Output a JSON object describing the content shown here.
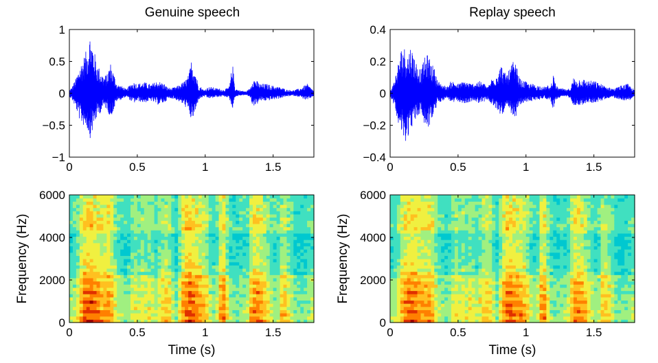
{
  "chart_data": [
    {
      "id": "genuine-waveform",
      "type": "line",
      "title": "Genuine speech",
      "xlabel": "",
      "ylabel": "",
      "xlim": [
        0,
        1.8
      ],
      "ylim": [
        -1,
        1
      ],
      "xticks": [
        0,
        0.5,
        1,
        1.5
      ],
      "xtick_labels": [
        "0",
        "0.5",
        "1",
        "1.5"
      ],
      "yticks": [
        -1,
        -0.5,
        0,
        0.5,
        1
      ],
      "ytick_labels": [
        "−1",
        "−0.5",
        "0",
        "0.5",
        "1"
      ],
      "grid": false,
      "series_color": "#0000ff",
      "envelope": {
        "x": [
          0,
          0.02,
          0.05,
          0.08,
          0.1,
          0.13,
          0.15,
          0.17,
          0.2,
          0.23,
          0.25,
          0.28,
          0.3,
          0.33,
          0.35,
          0.38,
          0.4,
          0.42,
          0.45,
          0.48,
          0.5,
          0.55,
          0.6,
          0.65,
          0.7,
          0.72,
          0.75,
          0.78,
          0.8,
          0.82,
          0.85,
          0.88,
          0.9,
          0.93,
          0.95,
          0.97,
          0.99,
          1.02,
          1.05,
          1.08,
          1.1,
          1.13,
          1.16,
          1.18,
          1.2,
          1.22,
          1.25,
          1.28,
          1.3,
          1.33,
          1.35,
          1.38,
          1.4,
          1.45,
          1.5,
          1.55,
          1.6,
          1.65,
          1.7,
          1.75,
          1.8
        ],
        "upper": [
          0.05,
          0.1,
          0.25,
          0.45,
          0.55,
          0.7,
          0.95,
          0.8,
          0.5,
          0.35,
          0.28,
          0.3,
          0.5,
          0.3,
          0.15,
          0.12,
          0.1,
          0.06,
          0.15,
          0.18,
          0.15,
          0.18,
          0.14,
          0.2,
          0.15,
          0.1,
          0.08,
          0.1,
          0.12,
          0.15,
          0.2,
          0.3,
          0.55,
          0.35,
          0.12,
          0.1,
          0.05,
          0.1,
          0.1,
          0.08,
          0.08,
          0.06,
          0.08,
          0.12,
          0.5,
          0.08,
          0.05,
          0.04,
          0.03,
          0.08,
          0.25,
          0.2,
          0.15,
          0.15,
          0.12,
          0.1,
          0.06,
          0.05,
          0.08,
          0.15,
          0.04
        ],
        "lower": [
          -0.05,
          -0.1,
          -0.25,
          -0.45,
          -0.5,
          -0.55,
          -0.72,
          -0.6,
          -0.4,
          -0.3,
          -0.22,
          -0.25,
          -0.4,
          -0.25,
          -0.12,
          -0.1,
          -0.08,
          -0.05,
          -0.12,
          -0.15,
          -0.12,
          -0.15,
          -0.12,
          -0.18,
          -0.15,
          -0.1,
          -0.08,
          -0.1,
          -0.12,
          -0.15,
          -0.2,
          -0.3,
          -0.45,
          -0.3,
          -0.1,
          -0.08,
          -0.05,
          -0.08,
          -0.08,
          -0.06,
          -0.06,
          -0.05,
          -0.06,
          -0.1,
          -0.25,
          -0.06,
          -0.04,
          -0.03,
          -0.03,
          -0.06,
          -0.2,
          -0.18,
          -0.12,
          -0.12,
          -0.1,
          -0.08,
          -0.05,
          -0.04,
          -0.06,
          -0.12,
          -0.04
        ]
      }
    },
    {
      "id": "replay-waveform",
      "type": "line",
      "title": "Replay speech",
      "xlabel": "",
      "ylabel": "",
      "xlim": [
        0,
        1.8
      ],
      "ylim": [
        -0.4,
        0.4
      ],
      "xticks": [
        0,
        0.5,
        1,
        1.5
      ],
      "xtick_labels": [
        "0",
        "0.5",
        "1",
        "1.5"
      ],
      "yticks": [
        -0.4,
        -0.2,
        0,
        0.2,
        0.4
      ],
      "ytick_labels": [
        "−0.4",
        "−0.2",
        "0",
        "0.2",
        "0.4"
      ],
      "grid": false,
      "series_color": "#0000ff",
      "envelope": {
        "x": [
          0,
          0.02,
          0.05,
          0.08,
          0.1,
          0.13,
          0.15,
          0.17,
          0.2,
          0.23,
          0.25,
          0.28,
          0.3,
          0.33,
          0.35,
          0.38,
          0.4,
          0.42,
          0.45,
          0.48,
          0.5,
          0.55,
          0.6,
          0.65,
          0.7,
          0.72,
          0.75,
          0.78,
          0.8,
          0.82,
          0.85,
          0.88,
          0.9,
          0.93,
          0.95,
          0.97,
          0.99,
          1.02,
          1.05,
          1.08,
          1.1,
          1.13,
          1.16,
          1.18,
          1.2,
          1.22,
          1.25,
          1.28,
          1.3,
          1.33,
          1.35,
          1.38,
          1.4,
          1.45,
          1.5,
          1.55,
          1.6,
          1.65,
          1.7,
          1.75,
          1.8
        ],
        "upper": [
          0.02,
          0.05,
          0.15,
          0.28,
          0.3,
          0.25,
          0.3,
          0.26,
          0.18,
          0.15,
          0.22,
          0.25,
          0.2,
          0.15,
          0.08,
          0.06,
          0.05,
          0.04,
          0.08,
          0.07,
          0.06,
          0.08,
          0.06,
          0.08,
          0.06,
          0.04,
          0.1,
          0.12,
          0.16,
          0.18,
          0.12,
          0.15,
          0.2,
          0.18,
          0.1,
          0.08,
          0.08,
          0.06,
          0.06,
          0.05,
          0.05,
          0.04,
          0.05,
          0.04,
          0.12,
          0.05,
          0.03,
          0.03,
          0.02,
          0.04,
          0.1,
          0.08,
          0.1,
          0.08,
          0.08,
          0.06,
          0.04,
          0.03,
          0.05,
          0.06,
          0.02
        ],
        "lower": [
          -0.02,
          -0.05,
          -0.15,
          -0.25,
          -0.32,
          -0.28,
          -0.22,
          -0.2,
          -0.15,
          -0.12,
          -0.2,
          -0.22,
          -0.18,
          -0.12,
          -0.06,
          -0.05,
          -0.04,
          -0.03,
          -0.06,
          -0.06,
          -0.05,
          -0.07,
          -0.05,
          -0.06,
          -0.05,
          -0.04,
          -0.08,
          -0.1,
          -0.12,
          -0.14,
          -0.1,
          -0.12,
          -0.16,
          -0.14,
          -0.08,
          -0.07,
          -0.06,
          -0.05,
          -0.05,
          -0.04,
          -0.04,
          -0.03,
          -0.04,
          -0.04,
          -0.1,
          -0.04,
          -0.03,
          -0.02,
          -0.02,
          -0.03,
          -0.08,
          -0.07,
          -0.08,
          -0.06,
          -0.06,
          -0.05,
          -0.03,
          -0.03,
          -0.04,
          -0.05,
          -0.02
        ]
      }
    },
    {
      "id": "genuine-spectrogram",
      "type": "heatmap",
      "title": "",
      "xlabel": "Time (s)",
      "ylabel": "Frequency (Hz)",
      "xlim": [
        0,
        1.8
      ],
      "ylim": [
        0,
        6000
      ],
      "xticks": [
        0,
        0.5,
        1,
        1.5
      ],
      "xtick_labels": [
        "0",
        "0.5",
        "1",
        "1.5"
      ],
      "yticks": [
        0,
        2000,
        4000,
        6000
      ],
      "ytick_labels": [
        "0",
        "2000",
        "4000",
        "6000"
      ],
      "grid": false,
      "colormap": [
        "#00c8d0",
        "#40e0c0",
        "#a0f080",
        "#f0f040",
        "#ffc020",
        "#ff8000",
        "#e03000",
        "#a00000"
      ],
      "activity": [
        0.35,
        0.4,
        0.5,
        0.65,
        0.8,
        0.85,
        0.85,
        0.8,
        0.75,
        0.7,
        0.7,
        0.72,
        0.65,
        0.5,
        0.4,
        0.35,
        0.3,
        0.35,
        0.45,
        0.5,
        0.45,
        0.5,
        0.45,
        0.5,
        0.45,
        0.4,
        0.5,
        0.55,
        0.6,
        0.55,
        0.4,
        0.3,
        0.5,
        0.7,
        0.8,
        0.85,
        0.8,
        0.75,
        0.7,
        0.65,
        0.55,
        0.4,
        0.35,
        0.4,
        0.7,
        0.75,
        0.5,
        0.35,
        0.3,
        0.3,
        0.35,
        0.35,
        0.4,
        0.65,
        0.75,
        0.75,
        0.7,
        0.6,
        0.5,
        0.4,
        0.35,
        0.4,
        0.6,
        0.6,
        0.5,
        0.4,
        0.3,
        0.3,
        0.3,
        0.3,
        0.35,
        0.4
      ]
    },
    {
      "id": "replay-spectrogram",
      "type": "heatmap",
      "title": "",
      "xlabel": "Time (s)",
      "ylabel": "Frequency (Hz)",
      "xlim": [
        0,
        1.8
      ],
      "ylim": [
        0,
        6000
      ],
      "xticks": [
        0,
        0.5,
        1,
        1.5
      ],
      "xtick_labels": [
        "0",
        "0.5",
        "1",
        "1.5"
      ],
      "yticks": [
        0,
        2000,
        4000,
        6000
      ],
      "ytick_labels": [
        "0",
        "2000",
        "4000",
        "6000"
      ],
      "grid": false,
      "colormap": [
        "#00c8d0",
        "#40e0c0",
        "#a0f080",
        "#f0f040",
        "#ffc020",
        "#ff8000",
        "#e03000",
        "#a00000"
      ],
      "activity": [
        0.35,
        0.4,
        0.5,
        0.65,
        0.75,
        0.8,
        0.8,
        0.78,
        0.72,
        0.68,
        0.7,
        0.72,
        0.65,
        0.5,
        0.4,
        0.35,
        0.3,
        0.35,
        0.45,
        0.5,
        0.45,
        0.5,
        0.45,
        0.5,
        0.45,
        0.4,
        0.5,
        0.55,
        0.6,
        0.55,
        0.4,
        0.3,
        0.5,
        0.7,
        0.78,
        0.82,
        0.78,
        0.72,
        0.7,
        0.65,
        0.55,
        0.4,
        0.35,
        0.4,
        0.68,
        0.72,
        0.5,
        0.35,
        0.3,
        0.3,
        0.35,
        0.35,
        0.4,
        0.62,
        0.72,
        0.72,
        0.68,
        0.6,
        0.5,
        0.4,
        0.35,
        0.4,
        0.58,
        0.58,
        0.5,
        0.4,
        0.3,
        0.3,
        0.3,
        0.3,
        0.35,
        0.4
      ]
    }
  ]
}
